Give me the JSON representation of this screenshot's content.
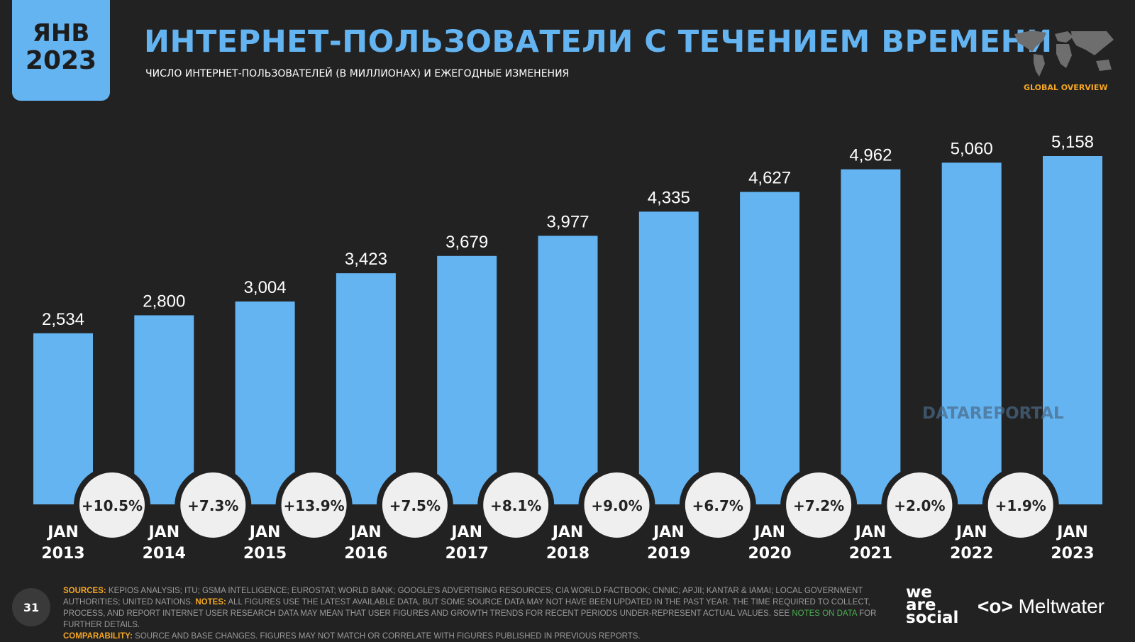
{
  "header": {
    "date_month": "ЯНВ",
    "date_year": "2023",
    "title": "ИНТЕРНЕТ-ПОЛЬЗОВАТЕЛИ С ТЕЧЕНИЕМ ВРЕМЕНИ",
    "subtitle": "ЧИСЛО ИНТЕРНЕТ-ПОЛЬЗОВАТЕЛЕЙ (В МИЛЛИОНАХ) И ЕЖЕГОДНЫЕ ИЗМЕНЕНИЯ",
    "section": "GLOBAL OVERVIEW"
  },
  "watermark": "DATAREPORTAL",
  "colors": {
    "bar": "#64b4f2",
    "accent": "#f5a623",
    "background": "#222223"
  },
  "chart_data": {
    "type": "bar",
    "categories": [
      "JAN 2013",
      "JAN 2014",
      "JAN 2015",
      "JAN 2016",
      "JAN 2017",
      "JAN 2018",
      "JAN 2019",
      "JAN 2020",
      "JAN 2021",
      "JAN 2022",
      "JAN 2023"
    ],
    "category_lines": [
      [
        "JAN",
        "2013"
      ],
      [
        "JAN",
        "2014"
      ],
      [
        "JAN",
        "2015"
      ],
      [
        "JAN",
        "2016"
      ],
      [
        "JAN",
        "2017"
      ],
      [
        "JAN",
        "2018"
      ],
      [
        "JAN",
        "2019"
      ],
      [
        "JAN",
        "2020"
      ],
      [
        "JAN",
        "2021"
      ],
      [
        "JAN",
        "2022"
      ],
      [
        "JAN",
        "2023"
      ]
    ],
    "values": [
      2534,
      2800,
      3004,
      3423,
      3679,
      3977,
      4335,
      4627,
      4962,
      5060,
      5158
    ],
    "value_labels": [
      "2,534",
      "2,800",
      "3,004",
      "3,423",
      "3,679",
      "3,977",
      "4,335",
      "4,627",
      "4,962",
      "5,060",
      "5,158"
    ],
    "changes": [
      "+10.5%",
      "+7.3%",
      "+13.9%",
      "+7.5%",
      "+8.1%",
      "+9.0%",
      "+6.7%",
      "+7.2%",
      "+2.0%",
      "+1.9%"
    ],
    "ylim": [
      0,
      5158
    ],
    "grid": false
  },
  "footer": {
    "sources_label": "SOURCES:",
    "sources": "KEPIOS ANALYSIS; ITU; GSMA INTELLIGENCE; EUROSTAT; WORLD BANK; GOOGLE'S ADVERTISING RESOURCES; CIA WORLD FACTBOOK; CNNIC; APJII; KANTAR & IAMAI; LOCAL GOVERNMENT AUTHORITIES; UNITED NATIONS.",
    "notes_label": "NOTES:",
    "notes": "ALL FIGURES USE THE LATEST AVAILABLE DATA, BUT SOME SOURCE DATA MAY NOT HAVE BEEN UPDATED IN THE PAST YEAR. THE TIME REQUIRED TO COLLECT, PROCESS, AND REPORT INTERNET USER RESEARCH DATA MAY MEAN THAT USER FIGURES AND GROWTH TRENDS FOR RECENT PERIODS UNDER-REPRESENT ACTUAL VALUES. SEE",
    "notes_link": "NOTES ON DATA",
    "notes_end": "FOR FURTHER DETAILS.",
    "comparability_label": "COMPARABILITY:",
    "comparability": "SOURCE AND BASE CHANGES. FIGURES MAY NOT MATCH OR CORRELATE WITH FIGURES PUBLISHED IN PREVIOUS REPORTS.",
    "page_number": "31",
    "brand1": "we are social",
    "brand2": "Meltwater"
  }
}
